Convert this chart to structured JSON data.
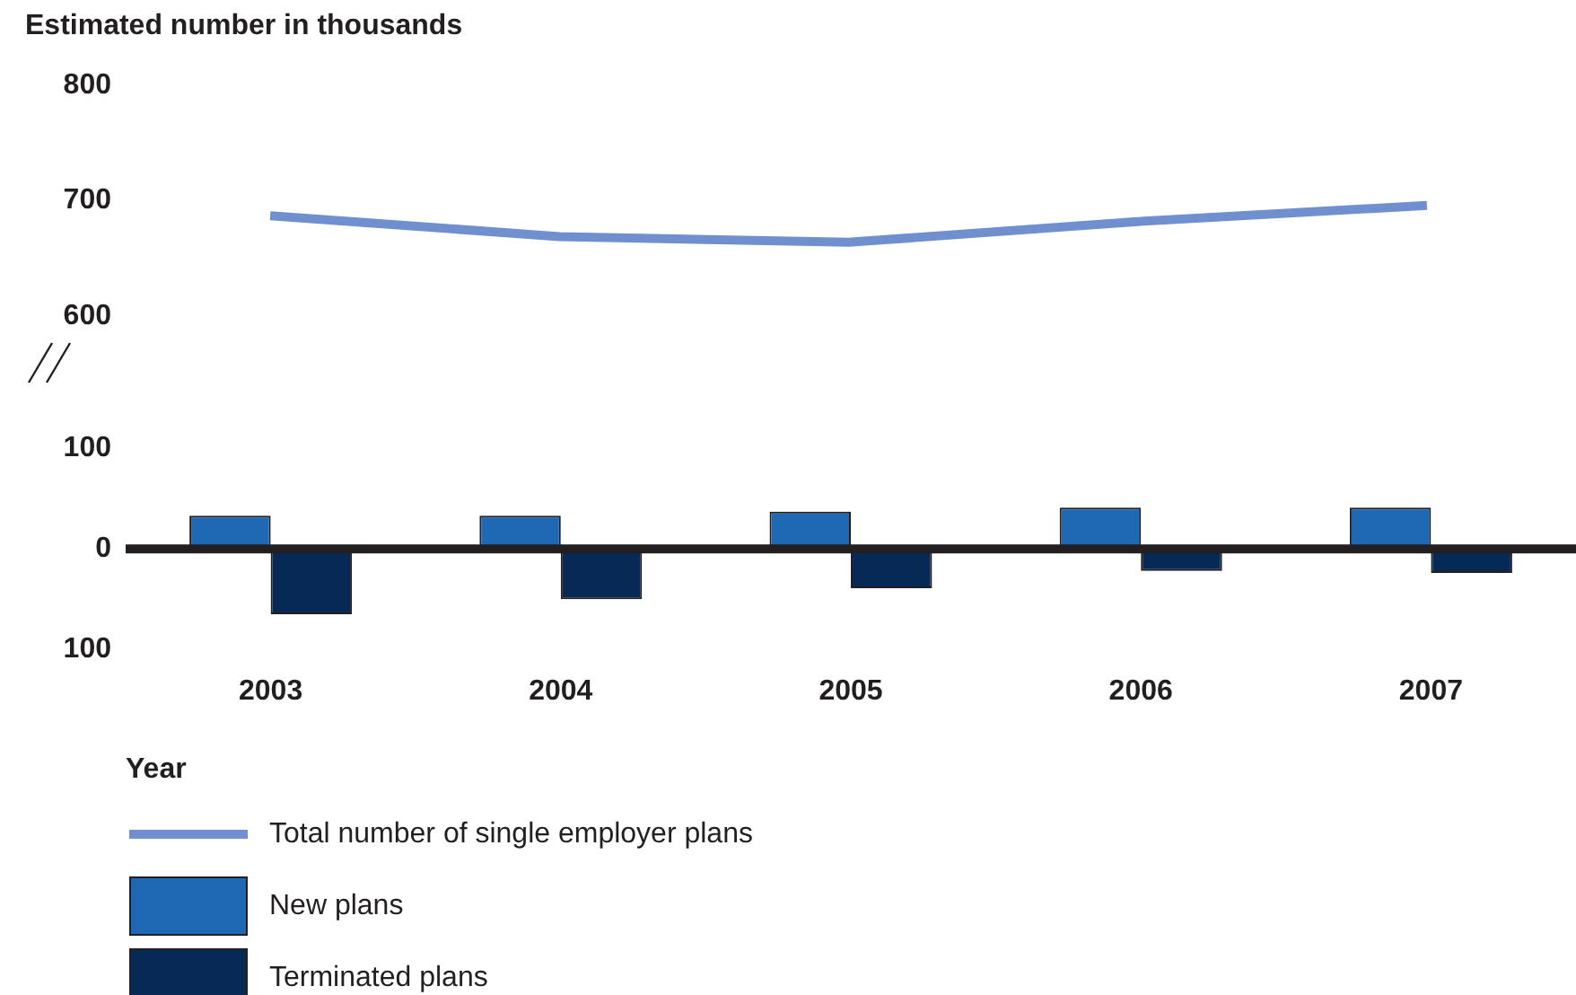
{
  "chart_data": [
    {
      "type": "line",
      "title": "Estimated number in thousands",
      "categories": [
        "2003",
        "2004",
        "2005",
        "2006",
        "2007"
      ],
      "series": [
        {
          "name": "Total number of single employer plans",
          "color": "#6f8fcf",
          "values": [
            687,
            669,
            664,
            682,
            696
          ]
        }
      ],
      "ylim": [
        600,
        800
      ],
      "yticks": [
        600,
        700,
        800
      ],
      "tick_labels": "y",
      "grid": false,
      "legend": "bottom",
      "marker": "none"
    },
    {
      "type": "bar",
      "xlabel": "Year",
      "categories": [
        "2003",
        "2004",
        "2005",
        "2006",
        "2007"
      ],
      "series": [
        {
          "name": "New plans",
          "color": "#1f68b3",
          "values": [
            33,
            33,
            37,
            41,
            41
          ]
        },
        {
          "name": "Terminated plans",
          "color": "#062a55",
          "values": [
            -65,
            -50,
            -39,
            -22,
            -24
          ]
        }
      ],
      "ylim": [
        -100,
        100
      ],
      "yticks": [
        {
          "value": -100,
          "label": "100"
        },
        0,
        100
      ],
      "grid": false,
      "legend": "bottom",
      "ref_lines": [
        {
          "axis": "y",
          "value": 0,
          "color": "#231f20"
        }
      ]
    }
  ]
}
